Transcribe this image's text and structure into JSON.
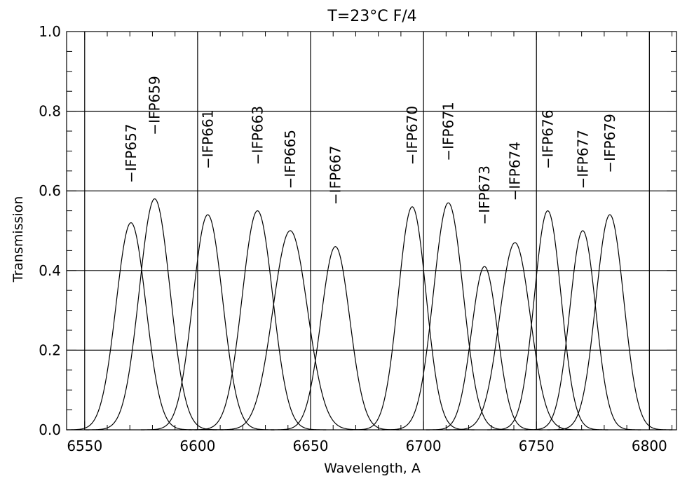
{
  "chart_data": {
    "type": "line",
    "title": "T=23°C F/4",
    "xlabel": "Wavelength, A",
    "ylabel": "Transmission",
    "xlim": [
      6542,
      6812
    ],
    "ylim": [
      0,
      1.0
    ],
    "x_ticks": [
      6550,
      6600,
      6650,
      6700,
      6750,
      6800
    ],
    "x_tick_labels": [
      "6550",
      "6600",
      "6650",
      "6700",
      "6750",
      "6800"
    ],
    "y_ticks": [
      0,
      0.2,
      0.4,
      0.6,
      0.8,
      1.0
    ],
    "y_tick_labels": [
      "0.0",
      "0.2",
      "0.4",
      "0.6",
      "0.8",
      "1.0"
    ],
    "grid": true,
    "line_color": "#000000",
    "series": [
      {
        "name": "IFP657",
        "label": "−IFP657",
        "center": 6570.5,
        "peak": 0.52,
        "fwhm": 15.5,
        "label_y": 0.62
      },
      {
        "name": "IFP659",
        "label": "−IFP659",
        "center": 6581.0,
        "peak": 0.58,
        "fwhm": 16.0,
        "label_y": 0.74
      },
      {
        "name": "IFP661",
        "label": "−IFP661",
        "center": 6604.5,
        "peak": 0.54,
        "fwhm": 15.5,
        "label_y": 0.655
      },
      {
        "name": "IFP663",
        "label": "−IFP663",
        "center": 6626.5,
        "peak": 0.55,
        "fwhm": 16.0,
        "label_y": 0.665
      },
      {
        "name": "IFP665",
        "label": "−IFP665",
        "center": 6641.0,
        "peak": 0.5,
        "fwhm": 18.0,
        "label_y": 0.605
      },
      {
        "name": "IFP667",
        "label": "−IFP667",
        "center": 6661.0,
        "peak": 0.46,
        "fwhm": 15.0,
        "label_y": 0.565
      },
      {
        "name": "IFP670",
        "label": "−IFP670",
        "center": 6695.0,
        "peak": 0.56,
        "fwhm": 14.5,
        "label_y": 0.665
      },
      {
        "name": "IFP671",
        "label": "−IFP671",
        "center": 6711.0,
        "peak": 0.57,
        "fwhm": 15.5,
        "label_y": 0.675
      },
      {
        "name": "IFP673",
        "label": "−IFP673",
        "center": 6727.0,
        "peak": 0.41,
        "fwhm": 13.5,
        "label_y": 0.515
      },
      {
        "name": "IFP674",
        "label": "−IFP674",
        "center": 6740.5,
        "peak": 0.47,
        "fwhm": 16.0,
        "label_y": 0.575
      },
      {
        "name": "IFP676",
        "label": "−IFP676",
        "center": 6755.0,
        "peak": 0.55,
        "fwhm": 14.0,
        "label_y": 0.655
      },
      {
        "name": "IFP677",
        "label": "−IFP677",
        "center": 6770.5,
        "peak": 0.5,
        "fwhm": 13.5,
        "label_y": 0.605
      },
      {
        "name": "IFP679",
        "label": "−IFP679",
        "center": 6782.5,
        "peak": 0.54,
        "fwhm": 14.5,
        "label_y": 0.645
      }
    ]
  }
}
